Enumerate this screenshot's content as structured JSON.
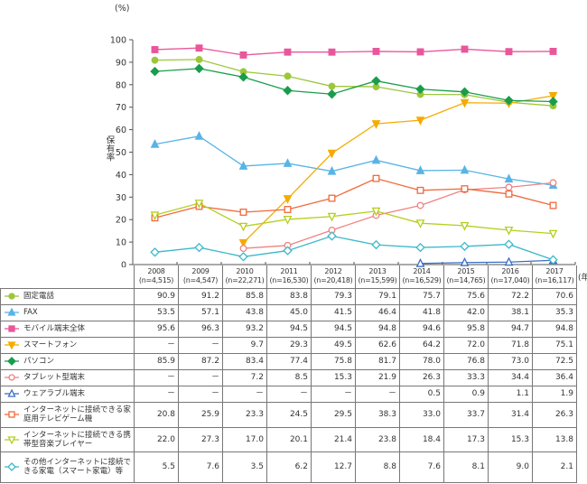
{
  "chart_data": {
    "type": "line",
    "ylabel": "保有率",
    "yunit": "(%)",
    "xunit": "(年)",
    "ylim": [
      0,
      100
    ],
    "yticks": [
      0,
      10,
      20,
      30,
      40,
      50,
      60,
      70,
      80,
      90,
      100
    ],
    "categories": [
      "2008",
      "2009",
      "2010",
      "2011",
      "2012",
      "2013",
      "2014",
      "2015",
      "2016",
      "2017"
    ],
    "sample_sizes": [
      "(n=4,515)",
      "(n=4,547)",
      "(n=22,271)",
      "(n=16,530)",
      "(n=20,418)",
      "(n=15,599)",
      "(n=16,529)",
      "(n=14,765)",
      "(n=17,040)",
      "(n=16,117)"
    ],
    "grid": false,
    "series": [
      {
        "name": "固定電話",
        "color": "#9cc73b",
        "marker": "circle",
        "filled": true,
        "values": [
          90.9,
          91.2,
          85.8,
          83.8,
          79.3,
          79.1,
          75.7,
          75.6,
          72.2,
          70.6
        ]
      },
      {
        "name": "FAX",
        "color": "#58b4e6",
        "marker": "triangle",
        "filled": true,
        "values": [
          53.5,
          57.1,
          43.8,
          45.0,
          41.5,
          46.4,
          41.8,
          42.0,
          38.1,
          35.3
        ]
      },
      {
        "name": "モバイル端末全体",
        "color": "#e9579b",
        "marker": "square",
        "filled": true,
        "values": [
          95.6,
          96.3,
          93.2,
          94.5,
          94.5,
          94.8,
          94.6,
          95.8,
          94.7,
          94.8
        ]
      },
      {
        "name": "スマートフォン",
        "color": "#f5ab00",
        "marker": "triangle-down",
        "filled": true,
        "values": [
          null,
          null,
          9.7,
          29.3,
          49.5,
          62.6,
          64.2,
          72.0,
          71.8,
          75.1
        ]
      },
      {
        "name": "パソコン",
        "color": "#1a9d4b",
        "marker": "diamond",
        "filled": true,
        "values": [
          85.9,
          87.2,
          83.4,
          77.4,
          75.8,
          81.7,
          78.0,
          76.8,
          73.0,
          72.5
        ]
      },
      {
        "name": "タブレット型端末",
        "color": "#f08282",
        "marker": "circle",
        "filled": false,
        "values": [
          null,
          null,
          7.2,
          8.5,
          15.3,
          21.9,
          26.3,
          33.3,
          34.4,
          36.4
        ]
      },
      {
        "name": "ウェアラブル端末",
        "color": "#3b6fc4",
        "marker": "triangle",
        "filled": false,
        "values": [
          null,
          null,
          null,
          null,
          null,
          null,
          0.5,
          0.9,
          1.1,
          1.9
        ]
      },
      {
        "name": "インターネットに接続できる家庭用テレビゲーム機",
        "color": "#f0693c",
        "marker": "square",
        "filled": false,
        "values": [
          20.8,
          25.9,
          23.3,
          24.5,
          29.5,
          38.3,
          33.0,
          33.7,
          31.4,
          26.3
        ]
      },
      {
        "name": "インターネットに接続できる携帯型音楽プレイヤー",
        "color": "#b5cf1e",
        "marker": "triangle-down",
        "filled": false,
        "values": [
          22.0,
          27.3,
          17.0,
          20.1,
          21.4,
          23.8,
          18.4,
          17.3,
          15.3,
          13.8
        ]
      },
      {
        "name": "その他インターネットに接続できる家電（スマート家電）等",
        "color": "#3bb8c9",
        "marker": "diamond",
        "filled": false,
        "values": [
          5.5,
          7.6,
          3.5,
          6.2,
          12.7,
          8.8,
          7.6,
          8.1,
          9.0,
          2.1
        ]
      }
    ],
    "missing_symbol": "－"
  }
}
